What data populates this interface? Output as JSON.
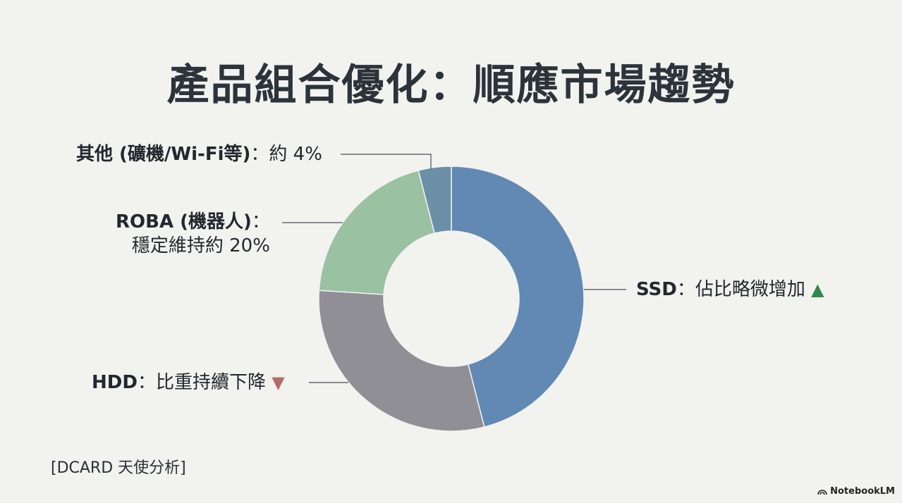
{
  "title": "產品組合優化：順應市場趨勢",
  "source": "[DCARD 天使分析]",
  "brand": "NotebookLM",
  "chart_data": {
    "type": "pie",
    "donut": true,
    "slices": [
      {
        "key": "ssd",
        "name": "SSD",
        "value": 46,
        "color": "#6189b3"
      },
      {
        "key": "hdd",
        "name": "HDD",
        "value": 30,
        "color": "#908f96"
      },
      {
        "key": "roba",
        "name": "ROBA (機器人)",
        "value": 20,
        "color": "#9ac1a1"
      },
      {
        "key": "other",
        "name": "其他 (礦機/Wi-Fi等)",
        "value": 4,
        "color": "#6b8fa6"
      }
    ]
  },
  "labels": {
    "other": {
      "name": "其他 (礦機/Wi-Fi等)",
      "sep": "：",
      "desc": "約 4%"
    },
    "roba": {
      "name": "ROBA (機器人)",
      "sep": "：",
      "desc": "穩定維持約 20%"
    },
    "ssd": {
      "name": "SSD",
      "sep": "：",
      "desc": "佔比略微增加",
      "arrow": "▲",
      "arrow_color": "#2f8a4e"
    },
    "hdd": {
      "name": "HDD",
      "sep": "：",
      "desc": "比重持續下降",
      "arrow": "▼",
      "arrow_color": "#b06b6b"
    }
  }
}
